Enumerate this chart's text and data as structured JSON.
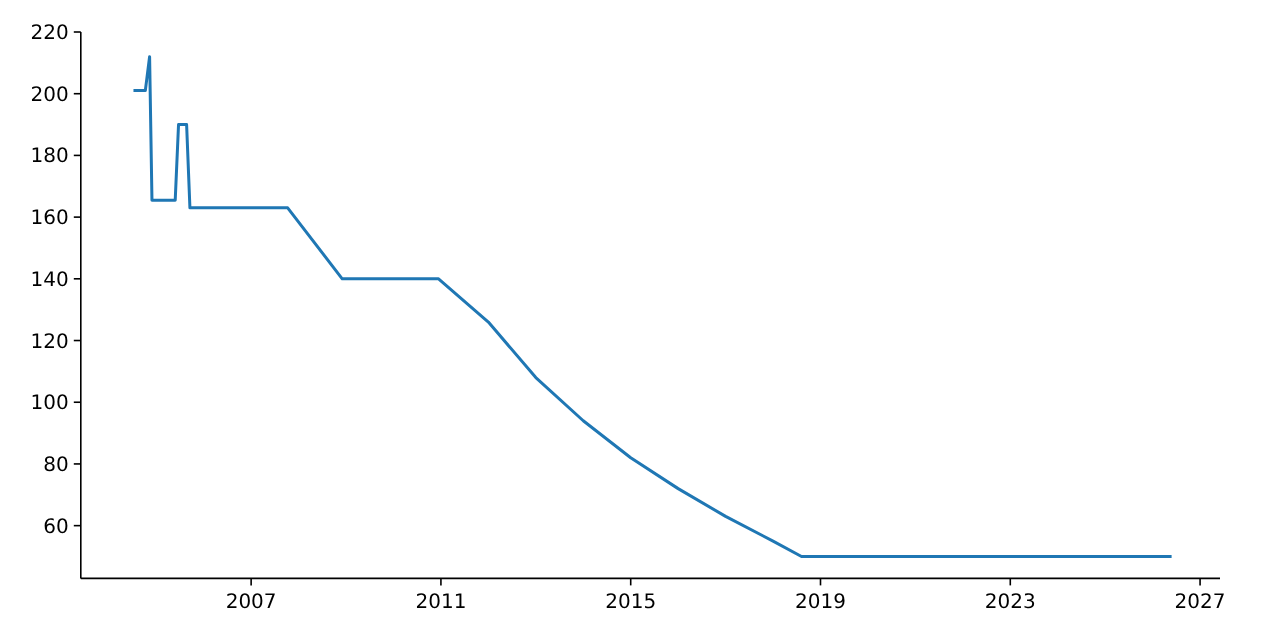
{
  "chart_data": {
    "type": "line",
    "x": [
      2004.52,
      2004.77,
      2004.86,
      2004.91,
      2005.4,
      2005.47,
      2005.64,
      2005.71,
      2007.77,
      2008.92,
      2010.95,
      2012,
      2013,
      2014,
      2015,
      2016,
      2017,
      2018,
      2018.6,
      2026.4
    ],
    "series": [
      {
        "color": "#1f77b4",
        "values": [
          201,
          201,
          212,
          165.5,
          165.5,
          190,
          190,
          163,
          163,
          140,
          140,
          126,
          108,
          94,
          82,
          72,
          63,
          55,
          50,
          50
        ]
      }
    ],
    "xlim": [
      2003.41,
      2027.42
    ],
    "xticks": [
      2007,
      2011,
      2015,
      2019,
      2023,
      2027
    ],
    "ylim": [
      42.9,
      220
    ],
    "yticks": [
      60,
      80,
      100,
      120,
      140,
      160,
      180,
      200,
      220
    ],
    "grid": false,
    "marker": "none",
    "line_style": "solid"
  }
}
